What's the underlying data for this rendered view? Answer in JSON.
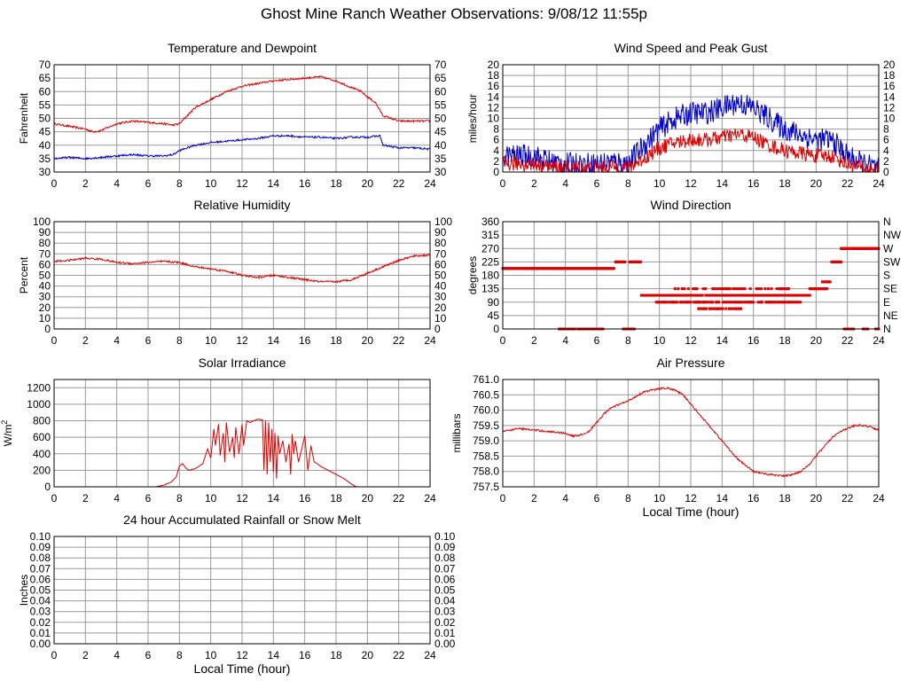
{
  "page": {
    "title": "Ghost Mine Ranch Weather Observations: 9/08/12 11:55p"
  },
  "chart_data": [
    {
      "id": "temp",
      "type": "line",
      "title": "Temperature and Dewpoint",
      "xlabel": "",
      "ylabel": "Fahrenheit",
      "xlim": [
        0,
        24
      ],
      "ylim": [
        30,
        70
      ],
      "x_ticks": [
        "0",
        "2",
        "4",
        "6",
        "8",
        "10",
        "12",
        "14",
        "16",
        "18",
        "20",
        "22",
        "24"
      ],
      "y_ticks": [
        "30",
        "35",
        "40",
        "45",
        "50",
        "55",
        "60",
        "65",
        "70"
      ],
      "y_ticks_right": [
        "30",
        "35",
        "40",
        "45",
        "50",
        "55",
        "60",
        "65",
        "70"
      ],
      "grid": true,
      "series": [
        {
          "color": "#dd0000",
          "jitter": 0.35,
          "x": [
            0,
            1,
            2,
            2.5,
            3,
            4,
            5,
            6,
            7,
            7.6,
            8,
            8.5,
            9,
            10,
            11,
            12,
            13,
            14,
            15,
            16,
            17,
            18,
            19,
            19.6,
            20,
            20.5,
            21,
            22,
            23,
            24
          ],
          "y": [
            48,
            47,
            46,
            45,
            45.5,
            48,
            49,
            48.5,
            48,
            47.5,
            48,
            51,
            54,
            57,
            60,
            62,
            63,
            64,
            64.5,
            65,
            65.5,
            64,
            61.5,
            60,
            58,
            56,
            51,
            49,
            49,
            49
          ]
        },
        {
          "color": "#0000cc",
          "jitter": 0.35,
          "x": [
            0,
            1,
            2,
            3,
            4,
            5,
            6,
            7,
            7.6,
            8,
            9,
            10,
            11,
            12,
            13,
            14,
            15,
            16,
            17,
            18,
            19,
            20,
            20.8,
            21,
            22,
            23,
            24
          ],
          "y": [
            35,
            35.5,
            35,
            35.5,
            36,
            36.5,
            36,
            36,
            36.5,
            38,
            40,
            41,
            41.5,
            42,
            42.5,
            43.5,
            43.5,
            43,
            43,
            42.5,
            43,
            43,
            43.5,
            40,
            39,
            39,
            38.5
          ]
        }
      ]
    },
    {
      "id": "wind_speed",
      "type": "line",
      "title": "Wind Speed and Peak Gust",
      "xlabel": "",
      "ylabel": "miles/hour",
      "xlim": [
        0,
        24
      ],
      "ylim": [
        0,
        20
      ],
      "x_ticks": [
        "0",
        "2",
        "4",
        "6",
        "8",
        "10",
        "12",
        "14",
        "16",
        "18",
        "20",
        "22",
        "24"
      ],
      "y_ticks": [
        "0",
        "2",
        "4",
        "6",
        "8",
        "10",
        "12",
        "14",
        "16",
        "18",
        "20"
      ],
      "y_ticks_right": [
        "0",
        "2",
        "4",
        "6",
        "8",
        "10",
        "12",
        "14",
        "16",
        "18",
        "20"
      ],
      "grid": true,
      "series": [
        {
          "color": "#0000cc",
          "jitter": 2.2,
          "x": [
            0,
            1,
            2,
            3,
            4,
            5,
            6,
            7,
            8,
            9,
            10,
            11,
            12,
            13,
            14,
            15,
            16,
            17,
            18,
            19,
            20,
            21,
            22,
            23,
            24
          ],
          "y": [
            3,
            3,
            3,
            2,
            1.5,
            1.5,
            1.5,
            2,
            1.5,
            5,
            8,
            10,
            11,
            11,
            12,
            13,
            12,
            10,
            8,
            7,
            6,
            6,
            3,
            1.5,
            0.5
          ]
        },
        {
          "color": "#dd0000",
          "jitter": 1.4,
          "x": [
            0,
            1,
            2,
            3,
            4,
            5,
            6,
            7,
            8,
            9,
            10,
            11,
            12,
            13,
            14,
            15,
            16,
            17,
            18,
            19,
            20,
            21,
            22,
            23,
            24
          ],
          "y": [
            1.5,
            1.5,
            1.5,
            1,
            0.8,
            0.8,
            0.8,
            1,
            0.8,
            2.5,
            4.5,
            5.5,
            6,
            6,
            6.5,
            7,
            6.5,
            5,
            4,
            3.5,
            3,
            3,
            1.5,
            0.8,
            0.3
          ]
        }
      ]
    },
    {
      "id": "humidity",
      "type": "line",
      "title": "Relative Humidity",
      "xlabel": "",
      "ylabel": "Percent",
      "xlim": [
        0,
        24
      ],
      "ylim": [
        0,
        100
      ],
      "x_ticks": [
        "0",
        "2",
        "4",
        "6",
        "8",
        "10",
        "12",
        "14",
        "16",
        "18",
        "20",
        "22",
        "24"
      ],
      "y_ticks": [
        "0",
        "10",
        "20",
        "30",
        "40",
        "50",
        "60",
        "70",
        "80",
        "90",
        "100"
      ],
      "y_ticks_right": [
        "0",
        "10",
        "20",
        "30",
        "40",
        "50",
        "60",
        "70",
        "80",
        "90",
        "100"
      ],
      "grid": true,
      "series": [
        {
          "color": "#dd0000",
          "jitter": 0.9,
          "x": [
            0,
            1,
            2,
            3,
            4,
            5,
            6,
            7,
            8,
            9,
            10,
            11,
            12,
            13,
            14,
            15,
            16,
            17,
            18,
            19,
            20,
            21,
            22,
            23,
            24
          ],
          "y": [
            63,
            64,
            66,
            65,
            62,
            61,
            62,
            63,
            62,
            58,
            56,
            54,
            50,
            48,
            50,
            48,
            46,
            44,
            44,
            46,
            52,
            58,
            64,
            68,
            69
          ]
        }
      ]
    },
    {
      "id": "wind_dir",
      "type": "scatter",
      "title": "Wind Direction",
      "xlabel": "",
      "ylabel": "degrees",
      "xlim": [
        0,
        24
      ],
      "ylim": [
        0,
        360
      ],
      "x_ticks": [
        "0",
        "2",
        "4",
        "6",
        "8",
        "10",
        "12",
        "14",
        "16",
        "18",
        "20",
        "22",
        "24"
      ],
      "y_ticks": [
        "0",
        "45",
        "90",
        "135",
        "180",
        "225",
        "270",
        "315",
        "360"
      ],
      "y_ticks_right": [
        "N",
        "NE",
        "E",
        "SE",
        "S",
        "SW",
        "W",
        "NW",
        "N"
      ],
      "grid": true,
      "color": "#dd0000",
      "segments": [
        {
          "x0": 0,
          "x1": 7.1,
          "y": 203,
          "density": 1.0
        },
        {
          "x0": 3.6,
          "x1": 6.4,
          "y": 0,
          "density": 0.7
        },
        {
          "x0": 7.2,
          "x1": 7.8,
          "y": 225,
          "density": 1.0
        },
        {
          "x0": 7.7,
          "x1": 8.4,
          "y": 0,
          "density": 1.0
        },
        {
          "x0": 8.1,
          "x1": 8.8,
          "y": 225,
          "density": 1.0
        },
        {
          "x0": 8.8,
          "x1": 19.6,
          "y": 113,
          "density": 0.85
        },
        {
          "x0": 9.8,
          "x1": 19.0,
          "y": 90,
          "density": 0.6
        },
        {
          "x0": 11.0,
          "x1": 18.5,
          "y": 135,
          "density": 0.4
        },
        {
          "x0": 12.5,
          "x1": 15.2,
          "y": 68,
          "density": 0.5
        },
        {
          "x0": 19.6,
          "x1": 20.7,
          "y": 135,
          "density": 1.0
        },
        {
          "x0": 20.4,
          "x1": 20.9,
          "y": 158,
          "density": 1.0
        },
        {
          "x0": 21.0,
          "x1": 21.6,
          "y": 225,
          "density": 1.0
        },
        {
          "x0": 21.6,
          "x1": 24,
          "y": 270,
          "density": 1.0
        },
        {
          "x0": 21.8,
          "x1": 22.4,
          "y": 0,
          "density": 1.0
        },
        {
          "x0": 23.0,
          "x1": 23.3,
          "y": 0,
          "density": 1.0
        },
        {
          "x0": 23.8,
          "x1": 24,
          "y": 0,
          "density": 1.0
        }
      ]
    },
    {
      "id": "solar",
      "type": "line",
      "title": "Solar Irradiance",
      "xlabel": "",
      "ylabel": "W/m",
      "ylabel_sup": "2",
      "xlim": [
        0,
        24
      ],
      "ylim": [
        0,
        1300
      ],
      "x_ticks": [
        "0",
        "2",
        "4",
        "6",
        "8",
        "10",
        "12",
        "14",
        "16",
        "18",
        "20",
        "22",
        "24"
      ],
      "y_ticks": [
        "0",
        "200",
        "400",
        "600",
        "800",
        "1000",
        "1200"
      ],
      "y_tick_values": [
        0,
        200,
        400,
        600,
        800,
        1000,
        1200
      ],
      "grid": true,
      "series": [
        {
          "color": "#dd0000",
          "jitter": 0,
          "x": [
            0,
            6.5,
            7.0,
            7.5,
            7.8,
            8.0,
            8.2,
            8.4,
            8.6,
            9.0,
            9.5,
            9.8,
            10.0,
            10.2,
            10.3,
            10.5,
            10.6,
            10.8,
            10.9,
            11.0,
            11.2,
            11.4,
            11.5,
            11.6,
            11.8,
            12.0,
            12.1,
            12.3,
            12.5,
            13.0,
            13.3,
            13.4,
            13.5,
            13.6,
            13.7,
            13.8,
            13.9,
            14.0,
            14.1,
            14.2,
            14.3,
            14.4,
            14.6,
            14.8,
            15.0,
            15.1,
            15.2,
            15.3,
            15.4,
            15.6,
            15.8,
            16.0,
            16.2,
            16.4,
            16.6,
            16.8,
            17.0,
            17.5,
            18.0,
            18.5,
            19.0,
            19.3,
            24
          ],
          "y": [
            0,
            0,
            20,
            60,
            120,
            250,
            280,
            230,
            200,
            220,
            280,
            460,
            350,
            700,
            500,
            760,
            380,
            650,
            300,
            780,
            420,
            600,
            350,
            720,
            400,
            760,
            500,
            800,
            780,
            820,
            810,
            200,
            800,
            150,
            780,
            300,
            700,
            180,
            650,
            100,
            620,
            400,
            560,
            300,
            520,
            150,
            640,
            400,
            560,
            300,
            450,
            620,
            200,
            500,
            300,
            280,
            250,
            200,
            150,
            100,
            30,
            0,
            0
          ]
        }
      ]
    },
    {
      "id": "pressure",
      "type": "line",
      "title": "Air Pressure",
      "xlabel": "Local Time (hour)",
      "ylabel": "millibars",
      "xlim": [
        0,
        24
      ],
      "ylim": [
        757.5,
        761.0
      ],
      "x_ticks": [
        "0",
        "2",
        "4",
        "6",
        "8",
        "10",
        "12",
        "14",
        "16",
        "18",
        "20",
        "22",
        "24"
      ],
      "y_ticks": [
        "757.5",
        "758.0",
        "758.5",
        "759.0",
        "759.5",
        "760.0",
        "760.5",
        "761.0"
      ],
      "y_tick_values": [
        757.5,
        758.0,
        758.5,
        759.0,
        759.5,
        760.0,
        760.5,
        761.0
      ],
      "grid": true,
      "series": [
        {
          "color": "#dd0000",
          "jitter": 0.03,
          "x": [
            0,
            1,
            2,
            3,
            4,
            4.5,
            5,
            5.5,
            6,
            6.5,
            7,
            7.5,
            8,
            8.5,
            9,
            9.5,
            10,
            10.5,
            11,
            11.5,
            12,
            12.5,
            13,
            13.5,
            14,
            14.5,
            15,
            15.5,
            16,
            16.5,
            17,
            17.5,
            18,
            18.5,
            19,
            19.5,
            20,
            20.5,
            21,
            21.5,
            22,
            22.5,
            23,
            23.5,
            24
          ],
          "y": [
            759.3,
            759.4,
            759.35,
            759.3,
            759.25,
            759.15,
            759.2,
            759.3,
            759.6,
            759.9,
            760.1,
            760.2,
            760.3,
            760.45,
            760.6,
            760.65,
            760.7,
            760.72,
            760.65,
            760.5,
            760.2,
            759.9,
            759.6,
            759.3,
            759.0,
            758.7,
            758.4,
            758.2,
            758.0,
            757.95,
            757.9,
            757.88,
            757.85,
            757.9,
            758.0,
            758.2,
            758.5,
            758.8,
            759.1,
            759.3,
            759.4,
            759.5,
            759.5,
            759.45,
            759.35
          ]
        }
      ]
    },
    {
      "id": "rain",
      "type": "line",
      "title": "24 hour Accumulated Rainfall or Snow Melt",
      "xlabel": "Local Time (hour)",
      "ylabel": "Inches",
      "xlim": [
        0,
        24
      ],
      "ylim": [
        0,
        0.1
      ],
      "x_ticks": [
        "0",
        "2",
        "4",
        "6",
        "8",
        "10",
        "12",
        "14",
        "16",
        "18",
        "20",
        "22",
        "24"
      ],
      "y_ticks": [
        "0.00",
        "0.01",
        "0.02",
        "0.03",
        "0.04",
        "0.05",
        "0.06",
        "0.07",
        "0.08",
        "0.09",
        "0.10"
      ],
      "y_ticks_right": [
        "0.00",
        "0.01",
        "0.02",
        "0.03",
        "0.04",
        "0.05",
        "0.06",
        "0.07",
        "0.08",
        "0.09",
        "0.10"
      ],
      "grid": true,
      "series": [
        {
          "color": "#dd0000",
          "jitter": 0,
          "x": [
            0,
            24
          ],
          "y": [
            0,
            0
          ]
        }
      ]
    }
  ]
}
